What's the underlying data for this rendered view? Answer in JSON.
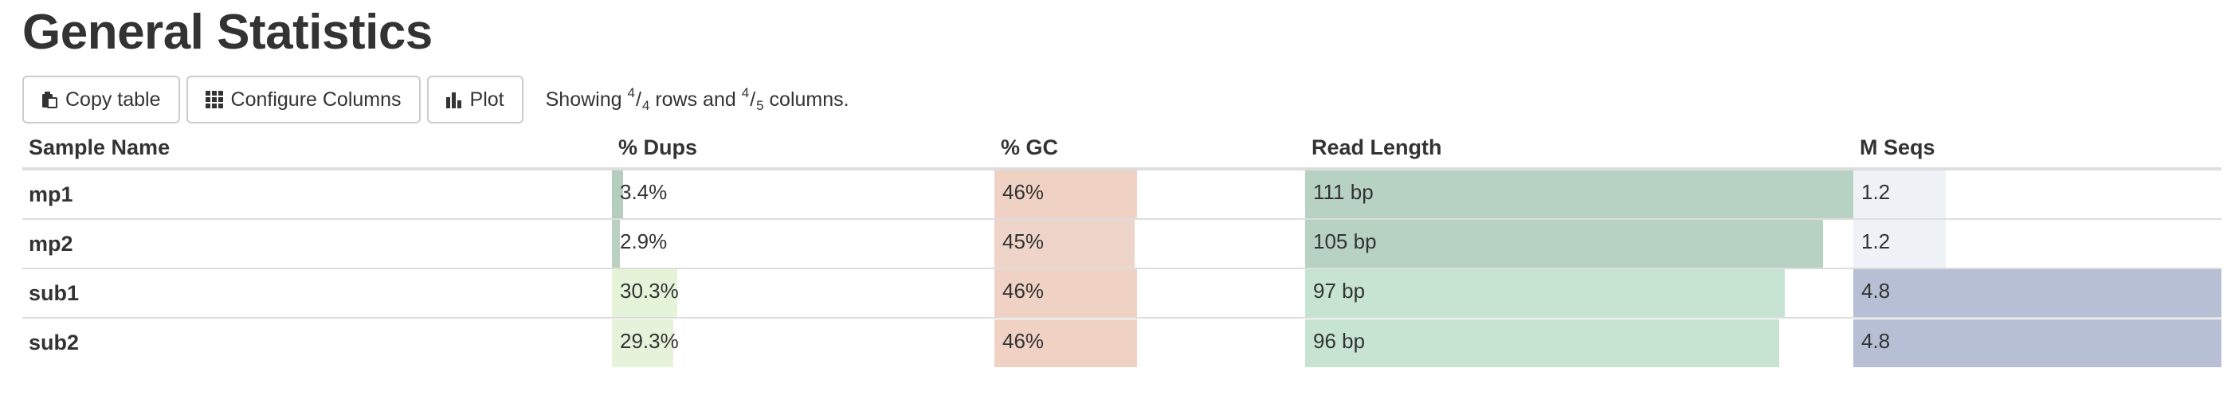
{
  "page": {
    "title": "General Statistics"
  },
  "toolbar": {
    "copy_label": "Copy table",
    "configure_label": "Configure Columns",
    "plot_label": "Plot",
    "showing": {
      "prefix": "Showing ",
      "rows_shown": "4",
      "rows_total": "4",
      "middle": " rows and ",
      "cols_shown": "4",
      "cols_total": "5",
      "suffix": " columns."
    }
  },
  "table": {
    "headers": [
      "Sample Name",
      "% Dups",
      "% GC",
      "Read Length",
      "M Seqs"
    ],
    "rows": [
      {
        "name": "mp1",
        "dups": "3.4%",
        "gc": "46%",
        "read_length": "111 bp",
        "mseqs": "1.2"
      },
      {
        "name": "mp2",
        "dups": "2.9%",
        "gc": "45%",
        "read_length": "105 bp",
        "mseqs": "1.2"
      },
      {
        "name": "sub1",
        "dups": "30.3%",
        "gc": "46%",
        "read_length": "97 bp",
        "mseqs": "4.8"
      },
      {
        "name": "sub2",
        "dups": "29.3%",
        "gc": "46%",
        "read_length": "96 bp",
        "mseqs": "4.8"
      }
    ],
    "bar_fraction": {
      "dups": [
        0.03,
        0.02,
        0.17,
        0.16
      ],
      "gc": [
        0.46,
        0.45,
        0.46,
        0.46
      ],
      "read_length": [
        1.0,
        0.945,
        0.875,
        0.865
      ],
      "mseqs": [
        0.25,
        0.25,
        1.0,
        1.0
      ]
    },
    "bar_colors": {
      "dups": [
        "#b5cdbd",
        "#b9d1c0",
        "#e5f3d9",
        "#e6f3da"
      ],
      "gc": [
        "#f0d2c5",
        "#eed4c9",
        "#f0d2c5",
        "#f0d2c5"
      ],
      "read_length": [
        "#b7d1c3",
        "#b7d1c3",
        "#c7e4d3",
        "#c7e4d3"
      ],
      "mseqs": [
        "#eef2f7",
        "#eef2f7",
        "#b6bfd3",
        "#b6bfd3"
      ]
    }
  }
}
